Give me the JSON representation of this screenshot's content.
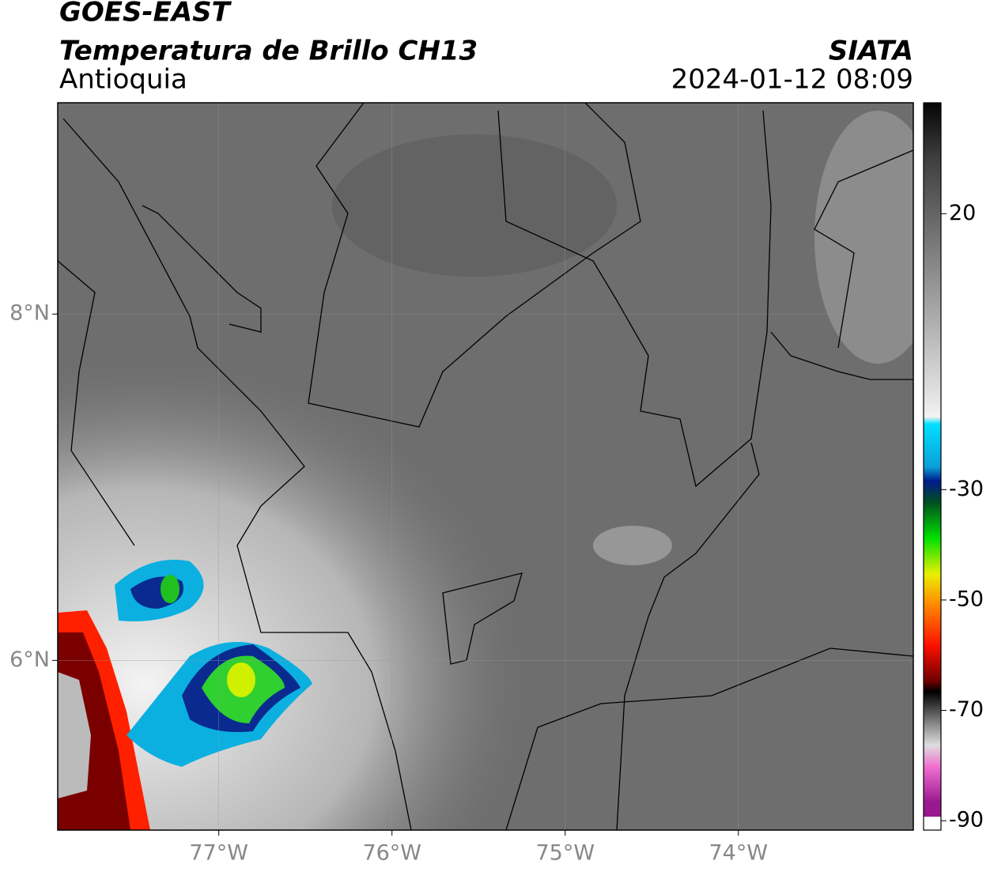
{
  "header": {
    "line1": "GOES-EAST",
    "title": "Temperatura de Brillo CH13",
    "region": "Antioquia",
    "source": "SIATA",
    "datetime": "2024-01-12 08:09"
  },
  "map": {
    "xlim": [
      -77.93,
      -72.99
    ],
    "ylim": [
      5.02,
      9.22
    ],
    "xticks": [
      {
        "value": -77,
        "label": "77°W"
      },
      {
        "value": -76,
        "label": "76°W"
      },
      {
        "value": -75,
        "label": "75°W"
      },
      {
        "value": -74,
        "label": "74°W"
      }
    ],
    "yticks": [
      {
        "value": 8,
        "label": "8°N"
      },
      {
        "value": 6,
        "label": "6°N"
      }
    ]
  },
  "colorbar": {
    "lim": [
      -91.7,
      40.1
    ],
    "ticks": [
      20,
      -30,
      -50,
      -70,
      -90
    ]
  }
}
